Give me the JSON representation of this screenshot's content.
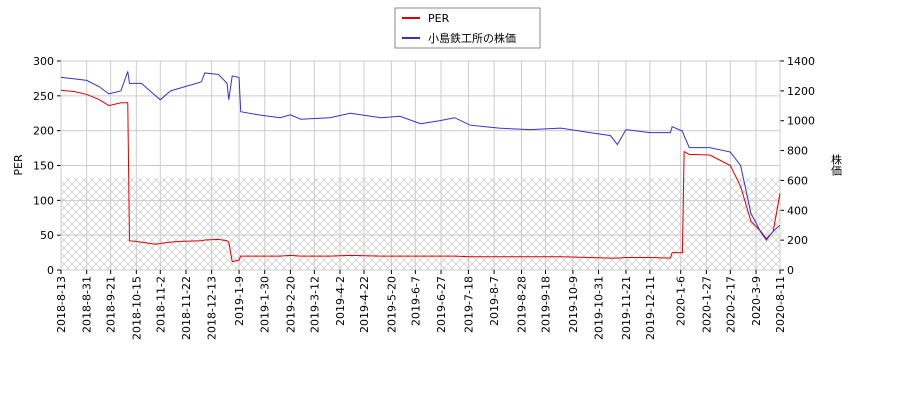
{
  "chart_data": {
    "type": "line",
    "xlabel": null,
    "ylabel": "PER",
    "y2label": "株価",
    "x": [
      0,
      8,
      15,
      22,
      28,
      35,
      39,
      40,
      47,
      55,
      58,
      64,
      70,
      82,
      84,
      92,
      97,
      98,
      100,
      104,
      105,
      115,
      128,
      134,
      140,
      157,
      169,
      187,
      198,
      210,
      221,
      230,
      239,
      256,
      274,
      292,
      309,
      321,
      325,
      330,
      344,
      356,
      357,
      363,
      364,
      367,
      379,
      391,
      397,
      403,
      409,
      412,
      416,
      420
    ],
    "series": [
      {
        "name": "PER",
        "color": "#dd0000",
        "axis": "y",
        "values": [
          258,
          256,
          252,
          245,
          236,
          240,
          240,
          42,
          40,
          37,
          38,
          40,
          41,
          42,
          43,
          44,
          42,
          40,
          12,
          14,
          20,
          20,
          20,
          21,
          20,
          20,
          21,
          20,
          20,
          20,
          20,
          20,
          19,
          19,
          19,
          19,
          18,
          17,
          17,
          18,
          18,
          17,
          25,
          25,
          170,
          166,
          165,
          150,
          120,
          70,
          55,
          45,
          55,
          110
        ]
      },
      {
        "name": "小島鉄工所の株価",
        "color": "#3333cc",
        "axis": "y2",
        "values": [
          1290,
          1280,
          1270,
          1230,
          1180,
          1200,
          1330,
          1250,
          1250,
          1170,
          1140,
          1200,
          1220,
          1260,
          1320,
          1310,
          1250,
          1140,
          1300,
          1290,
          1060,
          1040,
          1020,
          1040,
          1010,
          1020,
          1050,
          1020,
          1030,
          980,
          1000,
          1020,
          970,
          950,
          940,
          950,
          920,
          900,
          840,
          940,
          920,
          920,
          960,
          930,
          900,
          820,
          820,
          790,
          700,
          380,
          250,
          200,
          260,
          300
        ]
      }
    ],
    "xlim": [
      0,
      420
    ],
    "xticks": [
      {
        "value": 0,
        "label": "2018-8-13"
      },
      {
        "value": 15,
        "label": "2018-8-31"
      },
      {
        "value": 29,
        "label": "2018-9-21"
      },
      {
        "value": 44,
        "label": "2018-10-15"
      },
      {
        "value": 58,
        "label": "2018-11-2"
      },
      {
        "value": 73,
        "label": "2018-11-22"
      },
      {
        "value": 88,
        "label": "2018-12-13"
      },
      {
        "value": 104,
        "label": "2019-1-9"
      },
      {
        "value": 119,
        "label": "2019-1-30"
      },
      {
        "value": 134,
        "label": "2019-2-20"
      },
      {
        "value": 148,
        "label": "2019-3-12"
      },
      {
        "value": 163,
        "label": "2019-4-2"
      },
      {
        "value": 177,
        "label": "2019-4-22"
      },
      {
        "value": 193,
        "label": "2019-5-20"
      },
      {
        "value": 207,
        "label": "2019-6-7"
      },
      {
        "value": 222,
        "label": "2019-6-27"
      },
      {
        "value": 238,
        "label": "2019-7-18"
      },
      {
        "value": 253,
        "label": "2019-8-7"
      },
      {
        "value": 269,
        "label": "2019-8-28"
      },
      {
        "value": 283,
        "label": "2019-9-18"
      },
      {
        "value": 299,
        "label": "2019-10-9"
      },
      {
        "value": 314,
        "label": "2019-10-31"
      },
      {
        "value": 330,
        "label": "2019-11-21"
      },
      {
        "value": 344,
        "label": "2019-12-11"
      },
      {
        "value": 362,
        "label": "2020-1-6"
      },
      {
        "value": 377,
        "label": "2020-1-27"
      },
      {
        "value": 391,
        "label": "2020-2-17"
      },
      {
        "value": 406,
        "label": "2020-3-9"
      },
      {
        "value": 420,
        "label": "2020-8-11"
      }
    ],
    "ylim": [
      0,
      300
    ],
    "yticks": [
      0,
      50,
      100,
      150,
      200,
      250,
      300
    ],
    "y2lim": [
      0,
      1400
    ],
    "y2ticks": [
      0,
      200,
      400,
      600,
      800,
      1000,
      1200,
      1400
    ],
    "grid": true,
    "legend": "top"
  }
}
